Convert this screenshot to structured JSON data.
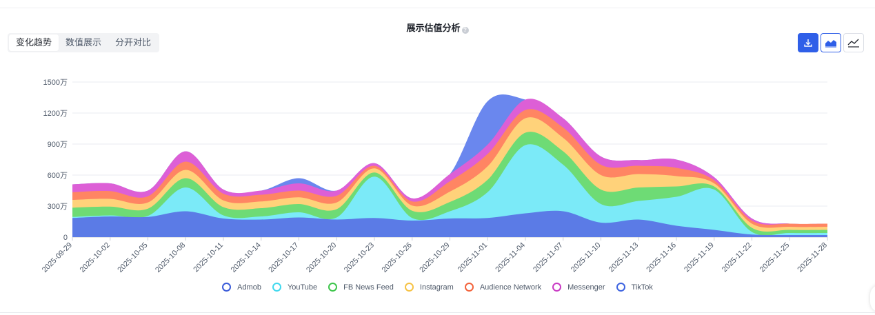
{
  "toolbar": {
    "tabs": [
      "变化趋势",
      "数值展示",
      "分开对比"
    ],
    "active_tab": 0
  },
  "icons": {
    "download": "download-icon",
    "area": "area-chart-icon",
    "line": "line-chart-icon",
    "help": "help-icon"
  },
  "chart_data": {
    "type": "area",
    "stacked": true,
    "title": "展示估值分析",
    "xlabel": "",
    "ylabel": "",
    "ylim": [
      0,
      15000000
    ],
    "yticks": [
      "0",
      "300万",
      "600万",
      "900万",
      "1200万",
      "1500万"
    ],
    "xticks": [
      "2025-09-29",
      "2025-10-02",
      "2025-10-05",
      "2025-10-08",
      "2025-10-11",
      "2025-10-14",
      "2025-10-17",
      "2025-10-20",
      "2025-10-23",
      "2025-10-26",
      "2025-10-29",
      "2025-11-01",
      "2025-11-04",
      "2025-11-07",
      "2025-11-10",
      "2025-11-13",
      "2025-11-16",
      "2025-11-19",
      "2025-11-22",
      "2025-11-25",
      "2025-11-28"
    ],
    "grid": true,
    "legend_position": "bottom",
    "series": [
      {
        "name": "Admob",
        "color": "#5b7be6",
        "values": [
          1850000,
          2000000,
          1950000,
          2500000,
          1800000,
          1700000,
          1900000,
          1700000,
          1850000,
          1600000,
          1800000,
          1850000,
          2300000,
          2500000,
          1400000,
          1700000,
          1100000,
          700000,
          250000,
          200000,
          200000
        ]
      },
      {
        "name": "YouTube",
        "color": "#7beaf8",
        "values": [
          100000,
          100000,
          100000,
          2300000,
          300000,
          300000,
          500000,
          200000,
          4000000,
          250000,
          700000,
          2500000,
          6600000,
          4500000,
          1800000,
          1800000,
          2800000,
          3900000,
          250000,
          200000,
          200000
        ]
      },
      {
        "name": "FB News Feed",
        "color": "#6edb75",
        "values": [
          900000,
          850000,
          700000,
          900000,
          800000,
          800000,
          800000,
          800000,
          400000,
          700000,
          900000,
          1200000,
          1200000,
          1300000,
          1400000,
          1300000,
          1000000,
          300000,
          400000,
          300000,
          300000
        ]
      },
      {
        "name": "Instagram",
        "color": "#ffd27a",
        "values": [
          750000,
          750000,
          600000,
          800000,
          650000,
          650000,
          650000,
          650000,
          400000,
          500000,
          1000000,
          1300000,
          1400000,
          1300000,
          1400000,
          1300000,
          1000000,
          300000,
          400000,
          300000,
          300000
        ]
      },
      {
        "name": "Audience Network",
        "color": "#ff8563",
        "values": [
          750000,
          750000,
          600000,
          800000,
          650000,
          650000,
          650000,
          650000,
          250000,
          400000,
          1000000,
          1200000,
          800000,
          1000000,
          1000000,
          800000,
          800000,
          300000,
          300000,
          300000,
          300000
        ]
      },
      {
        "name": "Messenger",
        "color": "#dd5fd6",
        "values": [
          750000,
          750000,
          550000,
          1000000,
          400000,
          400000,
          700000,
          500000,
          250000,
          300000,
          700000,
          900000,
          1000000,
          900000,
          800000,
          550000,
          800000,
          300000,
          200000,
          0,
          0
        ]
      },
      {
        "name": "TikTok",
        "color": "#6a87ee",
        "values": [
          0,
          0,
          0,
          0,
          0,
          0,
          500000,
          0,
          0,
          0,
          0,
          4200000,
          0,
          0,
          0,
          0,
          0,
          0,
          0,
          0,
          0
        ]
      }
    ]
  },
  "legend_ring_colors": [
    "#3a5bd9",
    "#3fd8ee",
    "#3cc54a",
    "#f6c244",
    "#f3623a",
    "#c93ac4",
    "#3d63e0"
  ]
}
